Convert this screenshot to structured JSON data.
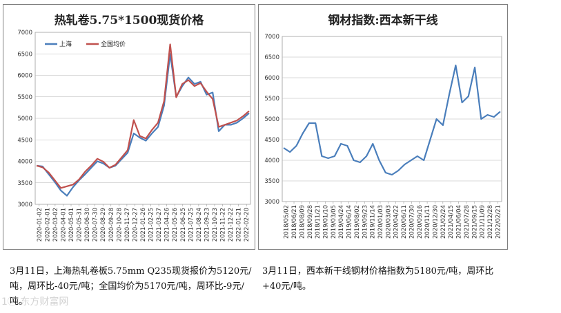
{
  "chart_data": [
    {
      "type": "line",
      "title": "热轧卷5.75*1500现货价格",
      "ylim": [
        3000,
        7000
      ],
      "yticks": [
        3000,
        3500,
        4000,
        4500,
        5000,
        5500,
        6000,
        6500,
        7000
      ],
      "grid": true,
      "legend": "top-left",
      "x_labels": [
        "2020-01-02",
        "2020-02-01",
        "2020-03-02",
        "2020-04-01",
        "2020-05-01",
        "2020-05-31",
        "2020-06-30",
        "2020-07-30",
        "2020-08-29",
        "2020-09-28",
        "2020-10-28",
        "2020-11-27",
        "2020-12-27",
        "2021-01-26",
        "2021-02-25",
        "2021-03-27",
        "2021-04-26",
        "2021-05-26",
        "2021-06-25",
        "2021-07-25",
        "2021-08-24",
        "2021-09-23",
        "2021-10-23",
        "2021-11-22",
        "2021-12-22",
        "2022-01-21",
        "2022-02-20"
      ],
      "series": [
        {
          "name": "上海",
          "color": "#4a7ebb",
          "values": [
            3900,
            3880,
            3700,
            3520,
            3320,
            3200,
            3400,
            3560,
            3700,
            3850,
            4000,
            3950,
            3850,
            3900,
            4050,
            4200,
            4650,
            4550,
            4480,
            4650,
            4800,
            5300,
            6500,
            5500,
            5750,
            5950,
            5800,
            5850,
            5550,
            5600,
            4700,
            4850,
            4850,
            4900,
            5000,
            5120
          ]
        },
        {
          "name": "全国均价",
          "color": "#c0504d",
          "values": [
            3900,
            3860,
            3740,
            3560,
            3380,
            3420,
            3460,
            3580,
            3760,
            3900,
            4060,
            3990,
            3850,
            3920,
            4090,
            4260,
            4960,
            4590,
            4530,
            4730,
            4900,
            5400,
            6720,
            5490,
            5800,
            5890,
            5750,
            5820,
            5620,
            5450,
            4800,
            4850,
            4900,
            4950,
            5050,
            5170
          ]
        }
      ]
    },
    {
      "type": "line",
      "title": "钢材指数:西本新干线",
      "ylim": [
        3000,
        7000
      ],
      "yticks": [
        3000,
        3500,
        4000,
        4500,
        5000,
        5500,
        6000,
        6500,
        7000
      ],
      "grid": true,
      "x_labels": [
        "2018/05/02",
        "2018/06/21",
        "2018/08/09",
        "2018/09/28",
        "2018/11/21",
        "2019/01/10",
        "2019/03/05",
        "2019/04/24",
        "2019/06/14",
        "2019/08/02",
        "2019/09/23",
        "2019/11/14",
        "2020/01/03",
        "2020/03/03",
        "2020/04/22",
        "2020/06/11",
        "2020/07/30",
        "2020/09/16",
        "2020/11/11",
        "2020/12/30",
        "2021/02/24",
        "2021/04/15",
        "2021/06/04",
        "2021/07/28",
        "2021/09/15",
        "2021/11/09",
        "2021/12/28",
        "2022/02/21"
      ],
      "series": [
        {
          "name": "",
          "color": "#4a7ebb",
          "values": [
            4300,
            4200,
            4350,
            4650,
            4900,
            4900,
            4100,
            4050,
            4100,
            4400,
            4350,
            4000,
            3950,
            4100,
            4400,
            4000,
            3700,
            3650,
            3750,
            3900,
            4000,
            4100,
            4000,
            4500,
            5000,
            4850,
            5600,
            6300,
            5400,
            5550,
            6250,
            5000,
            5100,
            5050,
            5180
          ]
        }
      ]
    }
  ],
  "captions": {
    "left": "3月11日，上海热轧卷板5.75mm Q235现货报价为5120元/吨，周环比-40元/吨；全国均价为5170元/吨，周环比-9元/吨。",
    "right": "3月11日，西本新干线钢材价格指数为5180元/吨，周环比+40元/吨。"
  },
  "watermark": "1ⓘ 东方财富网"
}
